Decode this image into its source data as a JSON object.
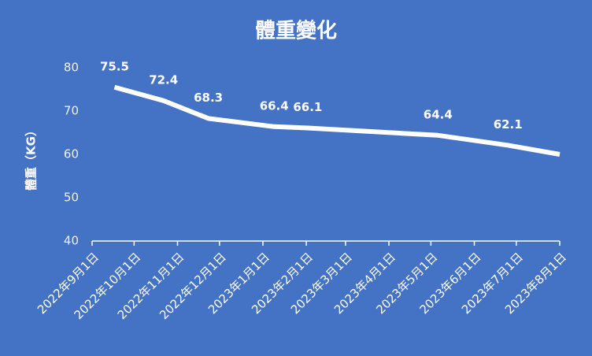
{
  "chart_data": {
    "type": "line",
    "title": "體重變化",
    "y_label": "體重（KG）",
    "x": [
      "2022-09-17",
      "2022-10-22",
      "2022-11-23",
      "2023-01-09",
      "2023-02-02",
      "2023-05-06",
      "2023-06-25",
      "2023-08-01"
    ],
    "series": [
      {
        "name": "體重",
        "color": "#ffffff",
        "values": [
          75.5,
          72.4,
          68.3,
          66.4,
          66.1,
          64.4,
          62.1,
          60
        ],
        "value_labels": [
          "75.5",
          "72.4",
          "68.3",
          "66.4",
          "66.1",
          "64.4",
          "62.1",
          null
        ]
      }
    ],
    "xlim": [
      "2022-09-01",
      "2023-08-01"
    ],
    "xticks": [
      {
        "value": "2022-09-01",
        "label": "2022年9月1日"
      },
      {
        "value": "2022-10-01",
        "label": "2022年10月1日"
      },
      {
        "value": "2022-11-01",
        "label": "2022年11月1日"
      },
      {
        "value": "2022-12-01",
        "label": "2022年12月1日"
      },
      {
        "value": "2023-01-01",
        "label": "2023年1月1日"
      },
      {
        "value": "2023-02-01",
        "label": "2023年2月1日"
      },
      {
        "value": "2023-03-01",
        "label": "2023年3月1日"
      },
      {
        "value": "2023-04-01",
        "label": "2023年4月1日"
      },
      {
        "value": "2023-05-01",
        "label": "2023年5月1日"
      },
      {
        "value": "2023-06-01",
        "label": "2023年6月1日"
      },
      {
        "value": "2023-07-01",
        "label": "2023年7月1日"
      },
      {
        "value": "2023-08-01",
        "label": "2023年8月1日"
      }
    ],
    "ylim": [
      40,
      80
    ],
    "yticks": [
      40,
      50,
      60,
      70,
      80
    ],
    "grid": false,
    "background": "#4472c4"
  }
}
